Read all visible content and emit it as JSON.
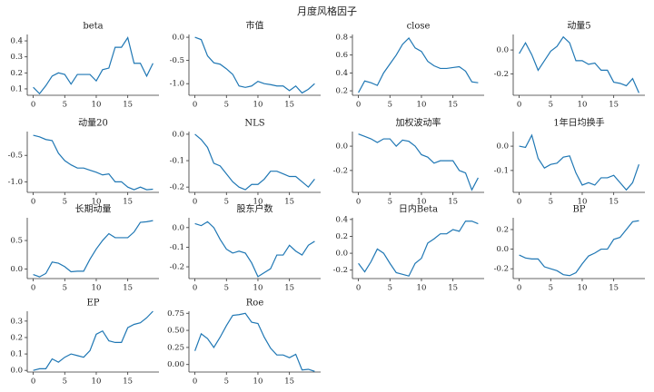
{
  "title": "月度风格因子",
  "chart_data": [
    {
      "type": "line",
      "title": "beta",
      "color": "#1f77b4",
      "x": [
        0,
        1,
        2,
        3,
        4,
        5,
        6,
        7,
        8,
        9,
        10,
        11,
        12,
        13,
        14,
        15,
        16,
        17,
        18,
        19
      ],
      "xlim": [
        -0.95,
        19.95
      ],
      "xticks": [
        0,
        5,
        10,
        15
      ],
      "values": [
        0.11,
        0.07,
        0.12,
        0.18,
        0.2,
        0.19,
        0.13,
        0.19,
        0.19,
        0.19,
        0.15,
        0.22,
        0.23,
        0.36,
        0.36,
        0.42,
        0.26,
        0.26,
        0.18,
        0.26
      ],
      "ylim": [
        0.06,
        0.44
      ],
      "yticks": [
        0.1,
        0.2,
        0.3,
        0.4
      ]
    },
    {
      "type": "line",
      "title": "市值",
      "color": "#1f77b4",
      "x": [
        0,
        1,
        2,
        3,
        4,
        5,
        6,
        7,
        8,
        9,
        10,
        11,
        12,
        13,
        14,
        15,
        16,
        17,
        18,
        19
      ],
      "xlim": [
        -0.95,
        19.95
      ],
      "xticks": [
        0,
        5,
        10,
        15
      ],
      "values": [
        0.0,
        -0.05,
        -0.4,
        -0.55,
        -0.58,
        -0.68,
        -0.8,
        -1.05,
        -1.08,
        -1.05,
        -0.95,
        -1.0,
        -1.02,
        -1.05,
        -1.05,
        -1.15,
        -1.05,
        -1.2,
        -1.12,
        -1.0
      ],
      "ylim": [
        -1.25,
        0.06
      ],
      "yticks": [
        {
          "value": 0,
          "label": "0.0"
        },
        -0.5,
        {
          "value": -1,
          "label": "-1.0"
        }
      ]
    },
    {
      "type": "line",
      "title": "close",
      "color": "#1f77b4",
      "x": [
        0,
        1,
        2,
        3,
        4,
        5,
        6,
        7,
        8,
        9,
        10,
        11,
        12,
        13,
        14,
        15,
        16,
        17,
        18,
        19
      ],
      "xlim": [
        -0.95,
        19.95
      ],
      "xticks": [
        0,
        5,
        10,
        15
      ],
      "values": [
        0.18,
        0.31,
        0.29,
        0.26,
        0.4,
        0.5,
        0.6,
        0.72,
        0.79,
        0.68,
        0.64,
        0.53,
        0.48,
        0.45,
        0.45,
        0.46,
        0.47,
        0.42,
        0.3,
        0.29
      ],
      "ylim": [
        0.15,
        0.83
      ],
      "yticks": [
        0.2,
        0.4,
        0.6,
        0.8
      ]
    },
    {
      "type": "line",
      "title": "动量5",
      "color": "#1f77b4",
      "x": [
        0,
        1,
        2,
        3,
        4,
        5,
        6,
        7,
        8,
        9,
        10,
        11,
        12,
        13,
        14,
        15,
        16,
        17,
        18,
        19
      ],
      "xlim": [
        -0.95,
        19.95
      ],
      "xticks": [
        0,
        5,
        10,
        15
      ],
      "values": [
        -0.03,
        0.06,
        -0.04,
        -0.17,
        -0.09,
        -0.01,
        0.03,
        0.11,
        0.06,
        -0.09,
        -0.09,
        -0.12,
        -0.11,
        -0.17,
        -0.17,
        -0.27,
        -0.28,
        -0.3,
        -0.24,
        -0.36
      ],
      "ylim": [
        -0.38,
        0.13
      ],
      "yticks": [
        {
          "value": 0,
          "label": "0.0"
        },
        -0.2
      ]
    },
    {
      "type": "line",
      "title": "动量20",
      "color": "#1f77b4",
      "x": [
        0,
        1,
        2,
        3,
        4,
        5,
        6,
        7,
        8,
        9,
        10,
        11,
        12,
        13,
        14,
        15,
        16,
        17,
        18,
        19
      ],
      "xlim": [
        -0.95,
        19.95
      ],
      "xticks": [
        0,
        5,
        10,
        15
      ],
      "values": [
        -0.12,
        -0.15,
        -0.2,
        -0.22,
        -0.46,
        -0.6,
        -0.68,
        -0.74,
        -0.74,
        -0.78,
        -0.82,
        -0.87,
        -0.85,
        -1.0,
        -1.0,
        -1.1,
        -1.15,
        -1.1,
        -1.15,
        -1.14
      ],
      "ylim": [
        -1.2,
        -0.05
      ],
      "yticks": [
        -0.5,
        {
          "value": -1,
          "label": "-1.0"
        }
      ]
    },
    {
      "type": "line",
      "title": "NLS",
      "color": "#1f77b4",
      "x": [
        0,
        1,
        2,
        3,
        4,
        5,
        6,
        7,
        8,
        9,
        10,
        11,
        12,
        13,
        14,
        15,
        16,
        17,
        18,
        19
      ],
      "xlim": [
        -0.95,
        19.95
      ],
      "xticks": [
        0,
        5,
        10,
        15
      ],
      "values": [
        0.0,
        -0.02,
        -0.05,
        -0.11,
        -0.12,
        -0.15,
        -0.18,
        -0.2,
        -0.21,
        -0.19,
        -0.19,
        -0.17,
        -0.14,
        -0.14,
        -0.15,
        -0.16,
        -0.16,
        -0.18,
        -0.2,
        -0.17
      ],
      "ylim": [
        -0.22,
        0.01
      ],
      "yticks": [
        {
          "value": 0,
          "label": "0.0"
        },
        -0.1,
        -0.2
      ]
    },
    {
      "type": "line",
      "title": "加权波动率",
      "color": "#1f77b4",
      "x": [
        0,
        1,
        2,
        3,
        4,
        5,
        6,
        7,
        8,
        9,
        10,
        11,
        12,
        13,
        14,
        15,
        16,
        17,
        18,
        19
      ],
      "xlim": [
        -0.95,
        19.95
      ],
      "xticks": [
        0,
        5,
        10,
        15
      ],
      "values": [
        0.1,
        0.08,
        0.06,
        0.03,
        0.06,
        0.06,
        0.0,
        0.05,
        0.04,
        0.0,
        -0.07,
        -0.09,
        -0.14,
        -0.12,
        -0.12,
        -0.12,
        -0.2,
        -0.22,
        -0.36,
        -0.26
      ],
      "ylim": [
        -0.38,
        0.12
      ],
      "yticks": [
        {
          "value": 0,
          "label": "0.0"
        },
        -0.2
      ]
    },
    {
      "type": "line",
      "title": "1年日均换手",
      "color": "#1f77b4",
      "x": [
        0,
        1,
        2,
        3,
        4,
        5,
        6,
        7,
        8,
        9,
        10,
        11,
        12,
        13,
        14,
        15,
        16,
        17,
        18,
        19
      ],
      "xlim": [
        -0.95,
        19.95
      ],
      "xticks": [
        0,
        5,
        10,
        15
      ],
      "values": [
        0.0,
        -0.005,
        0.045,
        -0.05,
        -0.09,
        -0.075,
        -0.07,
        -0.045,
        -0.04,
        -0.11,
        -0.16,
        -0.15,
        -0.16,
        -0.13,
        -0.13,
        -0.12,
        -0.15,
        -0.18,
        -0.15,
        -0.075
      ],
      "ylim": [
        -0.19,
        0.06
      ],
      "yticks": [
        {
          "value": 0,
          "label": "0.0"
        },
        -0.1
      ]
    },
    {
      "type": "line",
      "title": "长期动量",
      "color": "#1f77b4",
      "x": [
        0,
        1,
        2,
        3,
        4,
        5,
        6,
        7,
        8,
        9,
        10,
        11,
        12,
        13,
        14,
        15,
        16,
        17,
        18,
        19
      ],
      "xlim": [
        -0.95,
        19.95
      ],
      "xticks": [
        0,
        5,
        10,
        15
      ],
      "values": [
        -0.1,
        -0.14,
        -0.08,
        0.12,
        0.1,
        0.04,
        -0.05,
        -0.04,
        -0.04,
        0.17,
        0.35,
        0.5,
        0.62,
        0.55,
        0.55,
        0.55,
        0.65,
        0.82,
        0.83,
        0.85
      ],
      "ylim": [
        -0.17,
        0.9
      ],
      "yticks": [
        {
          "value": 0,
          "label": "0.0"
        },
        0.5
      ]
    },
    {
      "type": "line",
      "title": "股东户数",
      "color": "#1f77b4",
      "x": [
        0,
        1,
        2,
        3,
        4,
        5,
        6,
        7,
        8,
        9,
        10,
        11,
        12,
        13,
        14,
        15,
        16,
        17,
        18,
        19
      ],
      "xlim": [
        -0.95,
        19.95
      ],
      "xticks": [
        0,
        5,
        10,
        15
      ],
      "values": [
        0.02,
        0.01,
        0.03,
        0.0,
        -0.06,
        -0.11,
        -0.13,
        -0.12,
        -0.13,
        -0.18,
        -0.25,
        -0.23,
        -0.21,
        -0.14,
        -0.14,
        -0.09,
        -0.12,
        -0.14,
        -0.09,
        -0.07
      ],
      "ylim": [
        -0.26,
        0.05
      ],
      "yticks": [
        {
          "value": 0,
          "label": "0.0"
        },
        -0.1,
        -0.2
      ]
    },
    {
      "type": "line",
      "title": "日内Beta",
      "color": "#1f77b4",
      "x": [
        0,
        1,
        2,
        3,
        4,
        5,
        6,
        7,
        8,
        9,
        10,
        11,
        12,
        13,
        14,
        15,
        16,
        17,
        18,
        19
      ],
      "xlim": [
        -0.95,
        19.95
      ],
      "xticks": [
        0,
        5,
        10,
        15
      ],
      "values": [
        -0.12,
        -0.22,
        -0.1,
        0.05,
        0.0,
        -0.12,
        -0.23,
        -0.25,
        -0.27,
        -0.12,
        -0.06,
        0.12,
        0.17,
        0.23,
        0.23,
        0.28,
        0.26,
        0.38,
        0.38,
        0.35
      ],
      "ylim": [
        -0.3,
        0.42
      ],
      "yticks": [
        -0.2,
        {
          "value": 0,
          "label": "0.0"
        },
        0.2,
        0.4
      ]
    },
    {
      "type": "line",
      "title": "BP",
      "color": "#1f77b4",
      "x": [
        0,
        1,
        2,
        3,
        4,
        5,
        6,
        7,
        8,
        9,
        10,
        11,
        12,
        13,
        14,
        15,
        16,
        17,
        18,
        19
      ],
      "xlim": [
        -0.95,
        19.95
      ],
      "xticks": [
        0,
        5,
        10,
        15
      ],
      "values": [
        -0.06,
        -0.09,
        -0.1,
        -0.1,
        -0.18,
        -0.2,
        -0.22,
        -0.26,
        -0.27,
        -0.24,
        -0.15,
        -0.07,
        -0.04,
        0.0,
        0.0,
        0.1,
        0.12,
        0.2,
        0.28,
        0.29
      ],
      "ylim": [
        -0.3,
        0.32
      ],
      "yticks": [
        0.2,
        {
          "value": 0,
          "label": "0.0"
        },
        -0.2
      ]
    },
    {
      "type": "line",
      "title": "EP",
      "color": "#1f77b4",
      "x": [
        0,
        1,
        2,
        3,
        4,
        5,
        6,
        7,
        8,
        9,
        10,
        11,
        12,
        13,
        14,
        15,
        16,
        17,
        18,
        19
      ],
      "xlim": [
        -0.95,
        19.95
      ],
      "xticks": [
        0,
        5,
        10,
        15
      ],
      "values": [
        0.0,
        0.01,
        0.01,
        0.07,
        0.05,
        0.08,
        0.1,
        0.09,
        0.08,
        0.12,
        0.22,
        0.24,
        0.18,
        0.17,
        0.17,
        0.26,
        0.28,
        0.29,
        0.32,
        0.36
      ],
      "ylim": [
        -0.01,
        0.36
      ],
      "yticks": [
        {
          "value": 0,
          "label": "0.0"
        },
        0.1,
        0.2,
        0.3
      ]
    },
    {
      "type": "line",
      "title": "Roe",
      "color": "#1f77b4",
      "x": [
        0,
        1,
        2,
        3,
        4,
        5,
        6,
        7,
        8,
        9,
        10,
        11,
        12,
        13,
        14,
        15,
        16,
        17,
        18,
        19
      ],
      "xlim": [
        -0.95,
        19.95
      ],
      "xticks": [
        0,
        5,
        10,
        15
      ],
      "values": [
        0.2,
        0.45,
        0.38,
        0.25,
        0.4,
        0.57,
        0.72,
        0.73,
        0.75,
        0.62,
        0.6,
        0.4,
        0.24,
        0.14,
        0.14,
        0.1,
        0.15,
        -0.08,
        -0.07,
        -0.1
      ],
      "ylim": [
        -0.11,
        0.78
      ],
      "yticks": [
        {
          "value": 0,
          "label": "0.00"
        },
        {
          "value": 0.25,
          "label": "0.25"
        },
        {
          "value": 0.5,
          "label": "0.50"
        },
        {
          "value": 0.75,
          "label": "0.75"
        }
      ]
    }
  ]
}
